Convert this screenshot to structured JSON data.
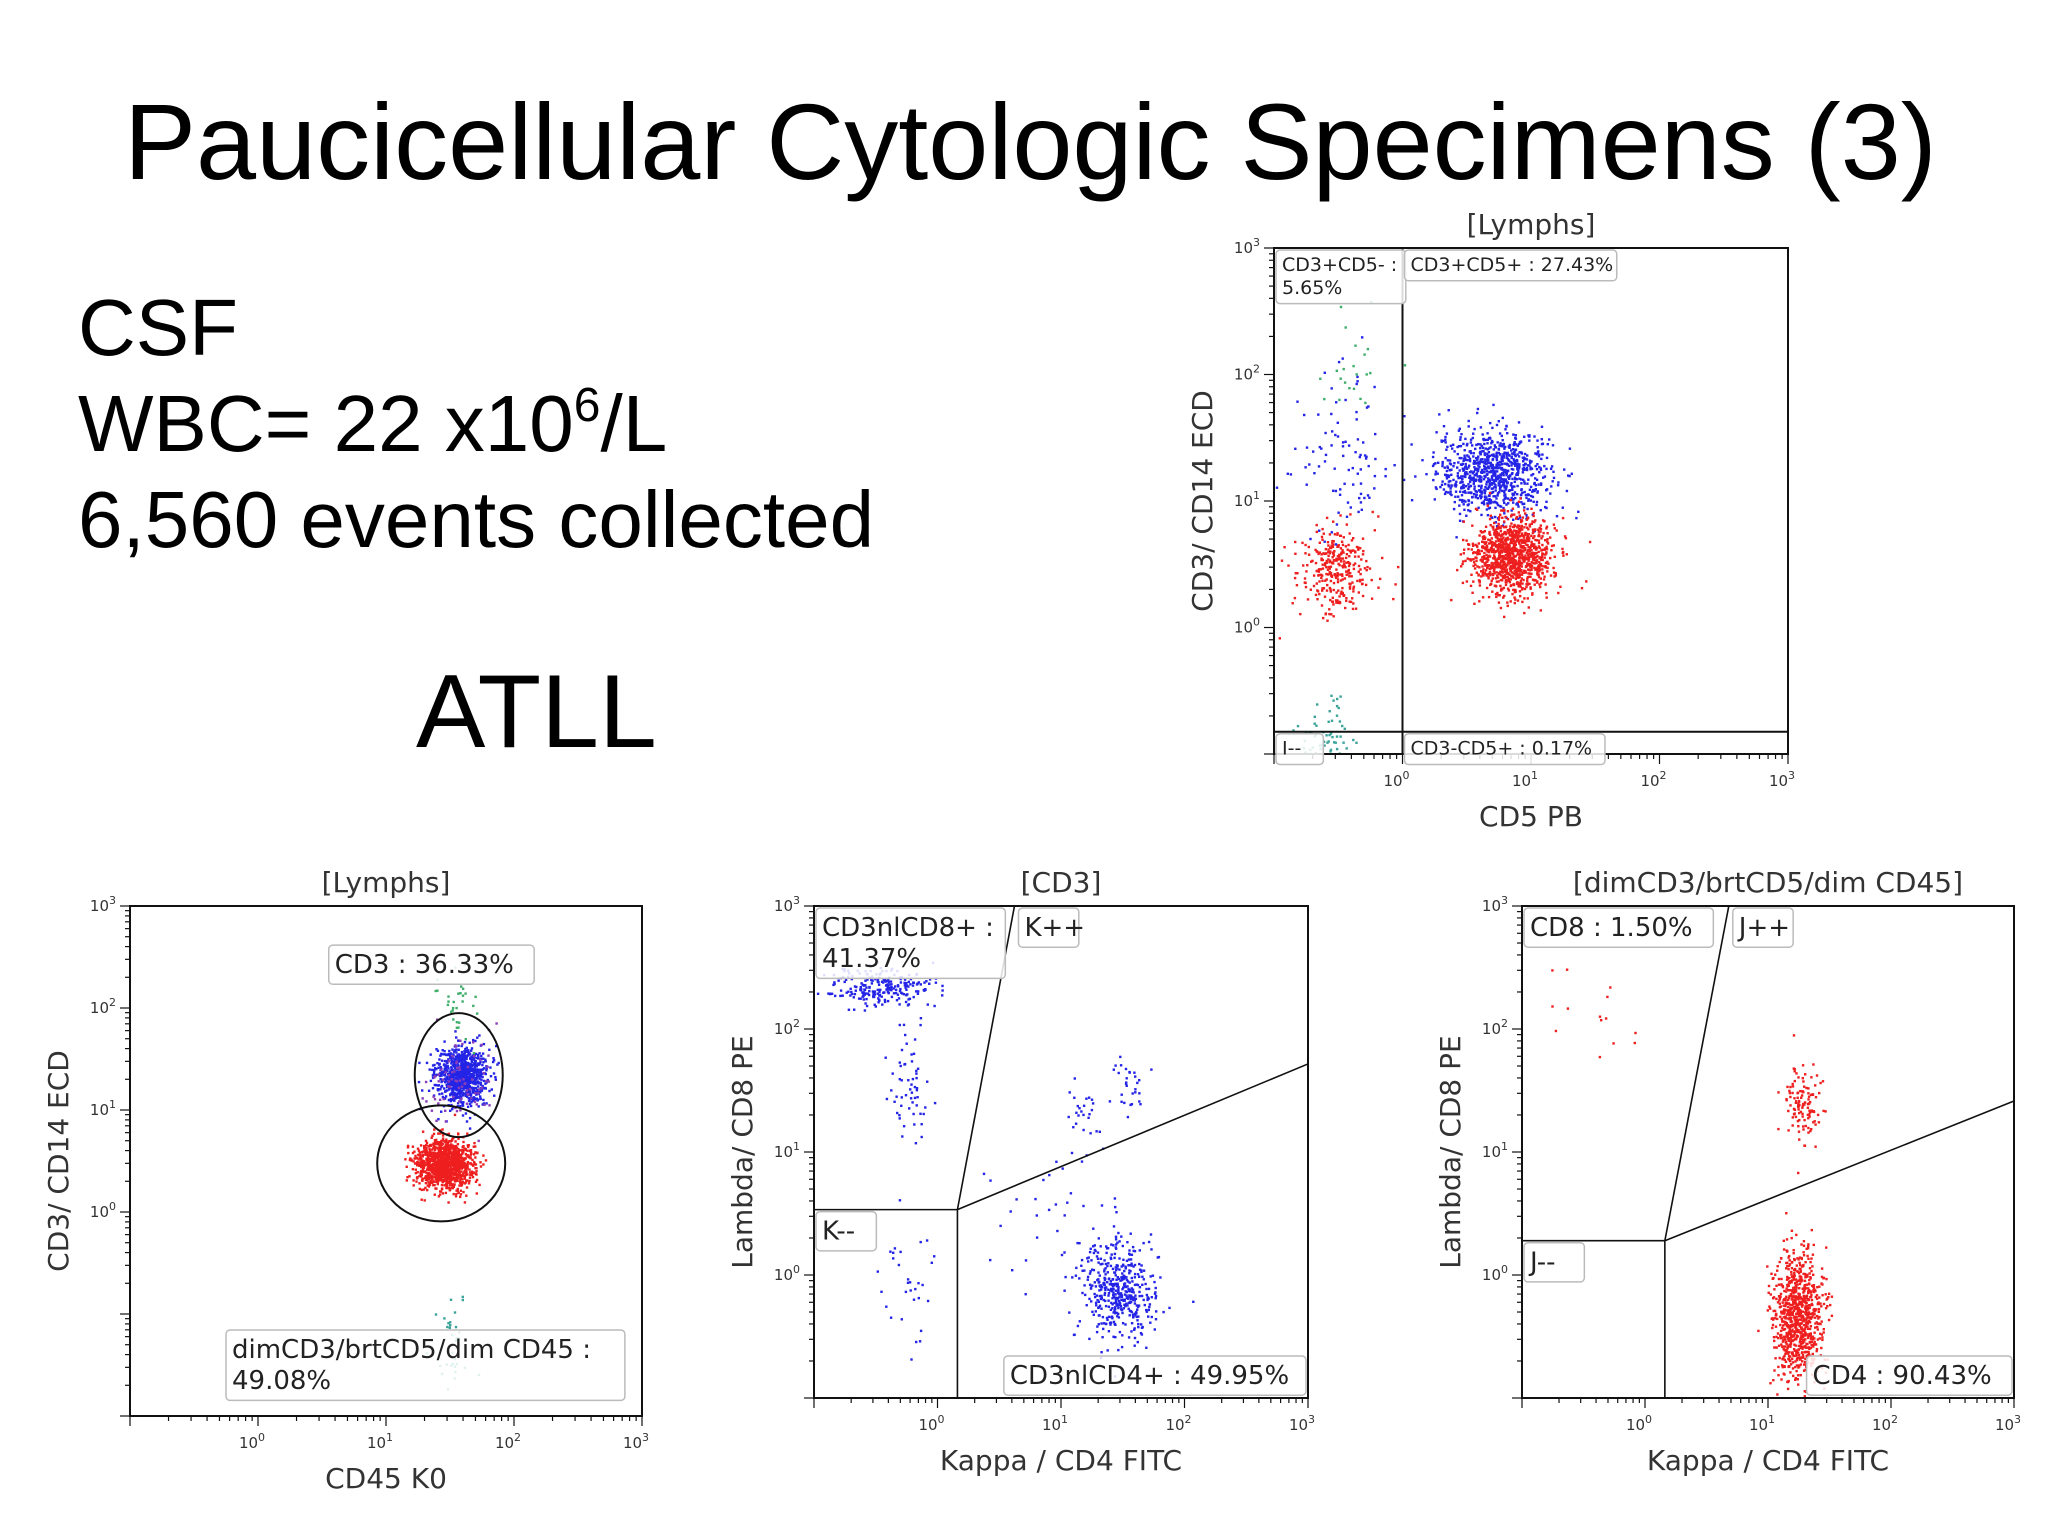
{
  "slide": {
    "title": "Paucicellular Cytologic Specimens (3)",
    "info": {
      "specimen": "CSF",
      "wbc_prefix": "WBC= 22 x10",
      "wbc_exponent": "6",
      "wbc_unit": "/L",
      "events": "6,560 events collected"
    },
    "diagnosis": "ATLL"
  },
  "colors": {
    "blue": "#2424e6",
    "red": "#ee1f1f",
    "green": "#3fae6b",
    "teal": "#3aa39a",
    "purple": "#8a3db8",
    "axis": "#111111",
    "label_box": "#bbbbbb"
  },
  "chart_data": [
    {
      "id": "cd5-vs-cd3",
      "type": "scatter",
      "title": "[Lymphs]",
      "xlabel": "CD5 PB",
      "ylabel": "CD3/ CD14 ECD",
      "xscale": "log",
      "yscale": "log",
      "xlim": [
        0.1,
        1000
      ],
      "ylim": [
        0.1,
        1000
      ],
      "xticks": [
        {
          "value": 1,
          "base": "10",
          "exp": "0"
        },
        {
          "value": 10,
          "base": "10",
          "exp": "1"
        },
        {
          "value": 100,
          "base": "10",
          "exp": "2"
        },
        {
          "value": 1000,
          "base": "10",
          "exp": "3"
        }
      ],
      "yticks": [
        {
          "value": 1,
          "base": "10",
          "exp": "0"
        },
        {
          "value": 10,
          "base": "10",
          "exp": "1"
        },
        {
          "value": 100,
          "base": "10",
          "exp": "2"
        },
        {
          "value": 1000,
          "base": "10",
          "exp": "3"
        }
      ],
      "divider": {
        "x": 1,
        "y": 0.15
      },
      "gates": [
        {
          "label": "CD3+CD5- :",
          "label2": "5.65%",
          "pos": "top-left"
        },
        {
          "label": "CD3+CD5+ : 27.43%",
          "pos": "top-right"
        },
        {
          "label": "I--",
          "pos": "bottom-left"
        },
        {
          "label": "CD3-CD5+ : 0.17%",
          "pos": "bottom-right"
        }
      ],
      "clusters": [
        {
          "color": "blue",
          "n": 900,
          "cx": 5,
          "cy": 17,
          "sx": 0.22,
          "sy": 0.17
        },
        {
          "color": "red",
          "n": 1100,
          "cx": 7,
          "cy": 3.8,
          "sx": 0.16,
          "sy": 0.15
        },
        {
          "color": "red",
          "n": 320,
          "cx": 0.3,
          "cy": 3,
          "sx": 0.14,
          "sy": 0.18
        },
        {
          "color": "blue",
          "n": 90,
          "cx": 0.35,
          "cy": 20,
          "sx": 0.2,
          "sy": 0.35
        },
        {
          "color": "green",
          "n": 22,
          "cx": 0.4,
          "cy": 100,
          "sx": 0.15,
          "sy": 0.25
        },
        {
          "color": "teal",
          "n": 70,
          "cx": 0.25,
          "cy": 0.13,
          "sx": 0.12,
          "sy": 0.18
        }
      ]
    },
    {
      "id": "cd45-vs-cd3",
      "type": "scatter",
      "title": "[Lymphs]",
      "xlabel": "CD45 K0",
      "ylabel": "CD3/ CD14 ECD",
      "xscale": "log",
      "yscale": "log",
      "xlim": [
        0.1,
        1000
      ],
      "ylim": [
        0.01,
        1000
      ],
      "xticks": [
        {
          "value": 1,
          "base": "10",
          "exp": "0"
        },
        {
          "value": 10,
          "base": "10",
          "exp": "1"
        },
        {
          "value": 100,
          "base": "10",
          "exp": "2"
        },
        {
          "value": 1000,
          "base": "10",
          "exp": "3"
        }
      ],
      "yticks": [
        {
          "value": 1,
          "base": "10",
          "exp": "0"
        },
        {
          "value": 10,
          "base": "10",
          "exp": "1"
        },
        {
          "value": 100,
          "base": "10",
          "exp": "2"
        },
        {
          "value": 1000,
          "base": "10",
          "exp": "3"
        }
      ],
      "gates": [
        {
          "label": "CD3 : 36.33%",
          "shape": "ellipse",
          "cx": 37,
          "cy": 22
        },
        {
          "label": "dimCD3/brtCD5/dim CD45 :",
          "label2": "49.08%",
          "shape": "ellipse",
          "cx": 27,
          "cy": 3
        }
      ],
      "clusters": [
        {
          "color": "blue",
          "n": 900,
          "cx": 38,
          "cy": 22,
          "sx": 0.1,
          "sy": 0.14
        },
        {
          "color": "purple",
          "n": 80,
          "cx": 38,
          "cy": 20,
          "sx": 0.14,
          "sy": 0.22
        },
        {
          "color": "red",
          "n": 1200,
          "cx": 28,
          "cy": 3,
          "sx": 0.11,
          "sy": 0.12
        },
        {
          "color": "green",
          "n": 30,
          "cx": 34,
          "cy": 110,
          "sx": 0.08,
          "sy": 0.2
        },
        {
          "color": "teal",
          "n": 40,
          "cx": 33,
          "cy": 0.05,
          "sx": 0.08,
          "sy": 0.25
        }
      ]
    },
    {
      "id": "cd3-kappa-lambda",
      "type": "scatter",
      "title": "[CD3]",
      "xlabel": "Kappa / CD4 FITC",
      "ylabel": "Lambda/ CD8 PE",
      "xscale": "log",
      "yscale": "log",
      "xlim": [
        0.1,
        1000
      ],
      "ylim": [
        0.1,
        1000
      ],
      "xticks": [
        {
          "value": 1,
          "base": "10",
          "exp": "0"
        },
        {
          "value": 10,
          "base": "10",
          "exp": "1"
        },
        {
          "value": 100,
          "base": "10",
          "exp": "2"
        },
        {
          "value": 1000,
          "base": "10",
          "exp": "3"
        }
      ],
      "yticks": [
        {
          "value": 1,
          "base": "10",
          "exp": "0"
        },
        {
          "value": 10,
          "base": "10",
          "exp": "1"
        },
        {
          "value": 100,
          "base": "10",
          "exp": "2"
        },
        {
          "value": 1000,
          "base": "10",
          "exp": "3"
        }
      ],
      "gate_lines": {
        "vx": 1.45,
        "vy": 3.4,
        "top_x": 4.2,
        "right_y": 52
      },
      "gates": [
        {
          "label": "CD3nlCD8+ :",
          "label2": "41.37%",
          "pos": "top-left"
        },
        {
          "label": "K++",
          "pos": "top-mid"
        },
        {
          "label": "K--",
          "pos": "mid-left"
        },
        {
          "label": "CD3nlCD4+ : 49.95%",
          "pos": "bottom-right"
        }
      ],
      "clusters": [
        {
          "color": "blue",
          "n": 240,
          "cx": 0.35,
          "cy": 220,
          "sx": 0.22,
          "sy": 0.08
        },
        {
          "color": "blue",
          "n": 60,
          "cx": 0.6,
          "cy": 35,
          "sx": 0.09,
          "sy": 0.28
        },
        {
          "color": "blue",
          "n": 30,
          "cx": 0.55,
          "cy": 0.9,
          "sx": 0.1,
          "sy": 0.3
        },
        {
          "color": "blue",
          "n": 460,
          "cx": 28,
          "cy": 0.75,
          "sx": 0.15,
          "sy": 0.2
        },
        {
          "color": "blue",
          "n": 30,
          "cx": 35,
          "cy": 40,
          "sx": 0.08,
          "sy": 0.2
        },
        {
          "color": "blue",
          "n": 25,
          "cx": 15,
          "cy": 20,
          "sx": 0.09,
          "sy": 0.15
        },
        {
          "color": "blue",
          "n": 40,
          "cx": 10,
          "cy": 3,
          "sx": 0.3,
          "sy": 0.3
        }
      ]
    },
    {
      "id": "atll-kappa-lambda",
      "type": "scatter",
      "title": "[dimCD3/brtCD5/dim CD45]",
      "xlabel": "Kappa / CD4 FITC",
      "ylabel": "Lambda/ CD8 PE",
      "xscale": "log",
      "yscale": "log",
      "xlim": [
        0.1,
        1000
      ],
      "ylim": [
        0.1,
        1000
      ],
      "xticks": [
        {
          "value": 1,
          "base": "10",
          "exp": "0"
        },
        {
          "value": 10,
          "base": "10",
          "exp": "1"
        },
        {
          "value": 100,
          "base": "10",
          "exp": "2"
        },
        {
          "value": 1000,
          "base": "10",
          "exp": "3"
        }
      ],
      "yticks": [
        {
          "value": 1,
          "base": "10",
          "exp": "0"
        },
        {
          "value": 10,
          "base": "10",
          "exp": "1"
        },
        {
          "value": 100,
          "base": "10",
          "exp": "2"
        },
        {
          "value": 1000,
          "base": "10",
          "exp": "3"
        }
      ],
      "gate_lines": {
        "vx": 1.45,
        "vy": 1.9,
        "top_x": 4.8,
        "right_y": 26
      },
      "gates": [
        {
          "label": "CD8 : 1.50%",
          "pos": "top-left"
        },
        {
          "label": "J++",
          "pos": "top-mid"
        },
        {
          "label": "J--",
          "pos": "mid-left"
        },
        {
          "label": "CD4 : 90.43%",
          "pos": "bottom-right"
        }
      ],
      "clusters": [
        {
          "color": "red",
          "n": 900,
          "cx": 17,
          "cy": 0.45,
          "sx": 0.1,
          "sy": 0.27
        },
        {
          "color": "red",
          "n": 120,
          "cx": 18,
          "cy": 25,
          "sx": 0.08,
          "sy": 0.15
        },
        {
          "color": "red",
          "n": 14,
          "cx": 0.45,
          "cy": 150,
          "sx": 0.25,
          "sy": 0.18
        }
      ]
    }
  ]
}
